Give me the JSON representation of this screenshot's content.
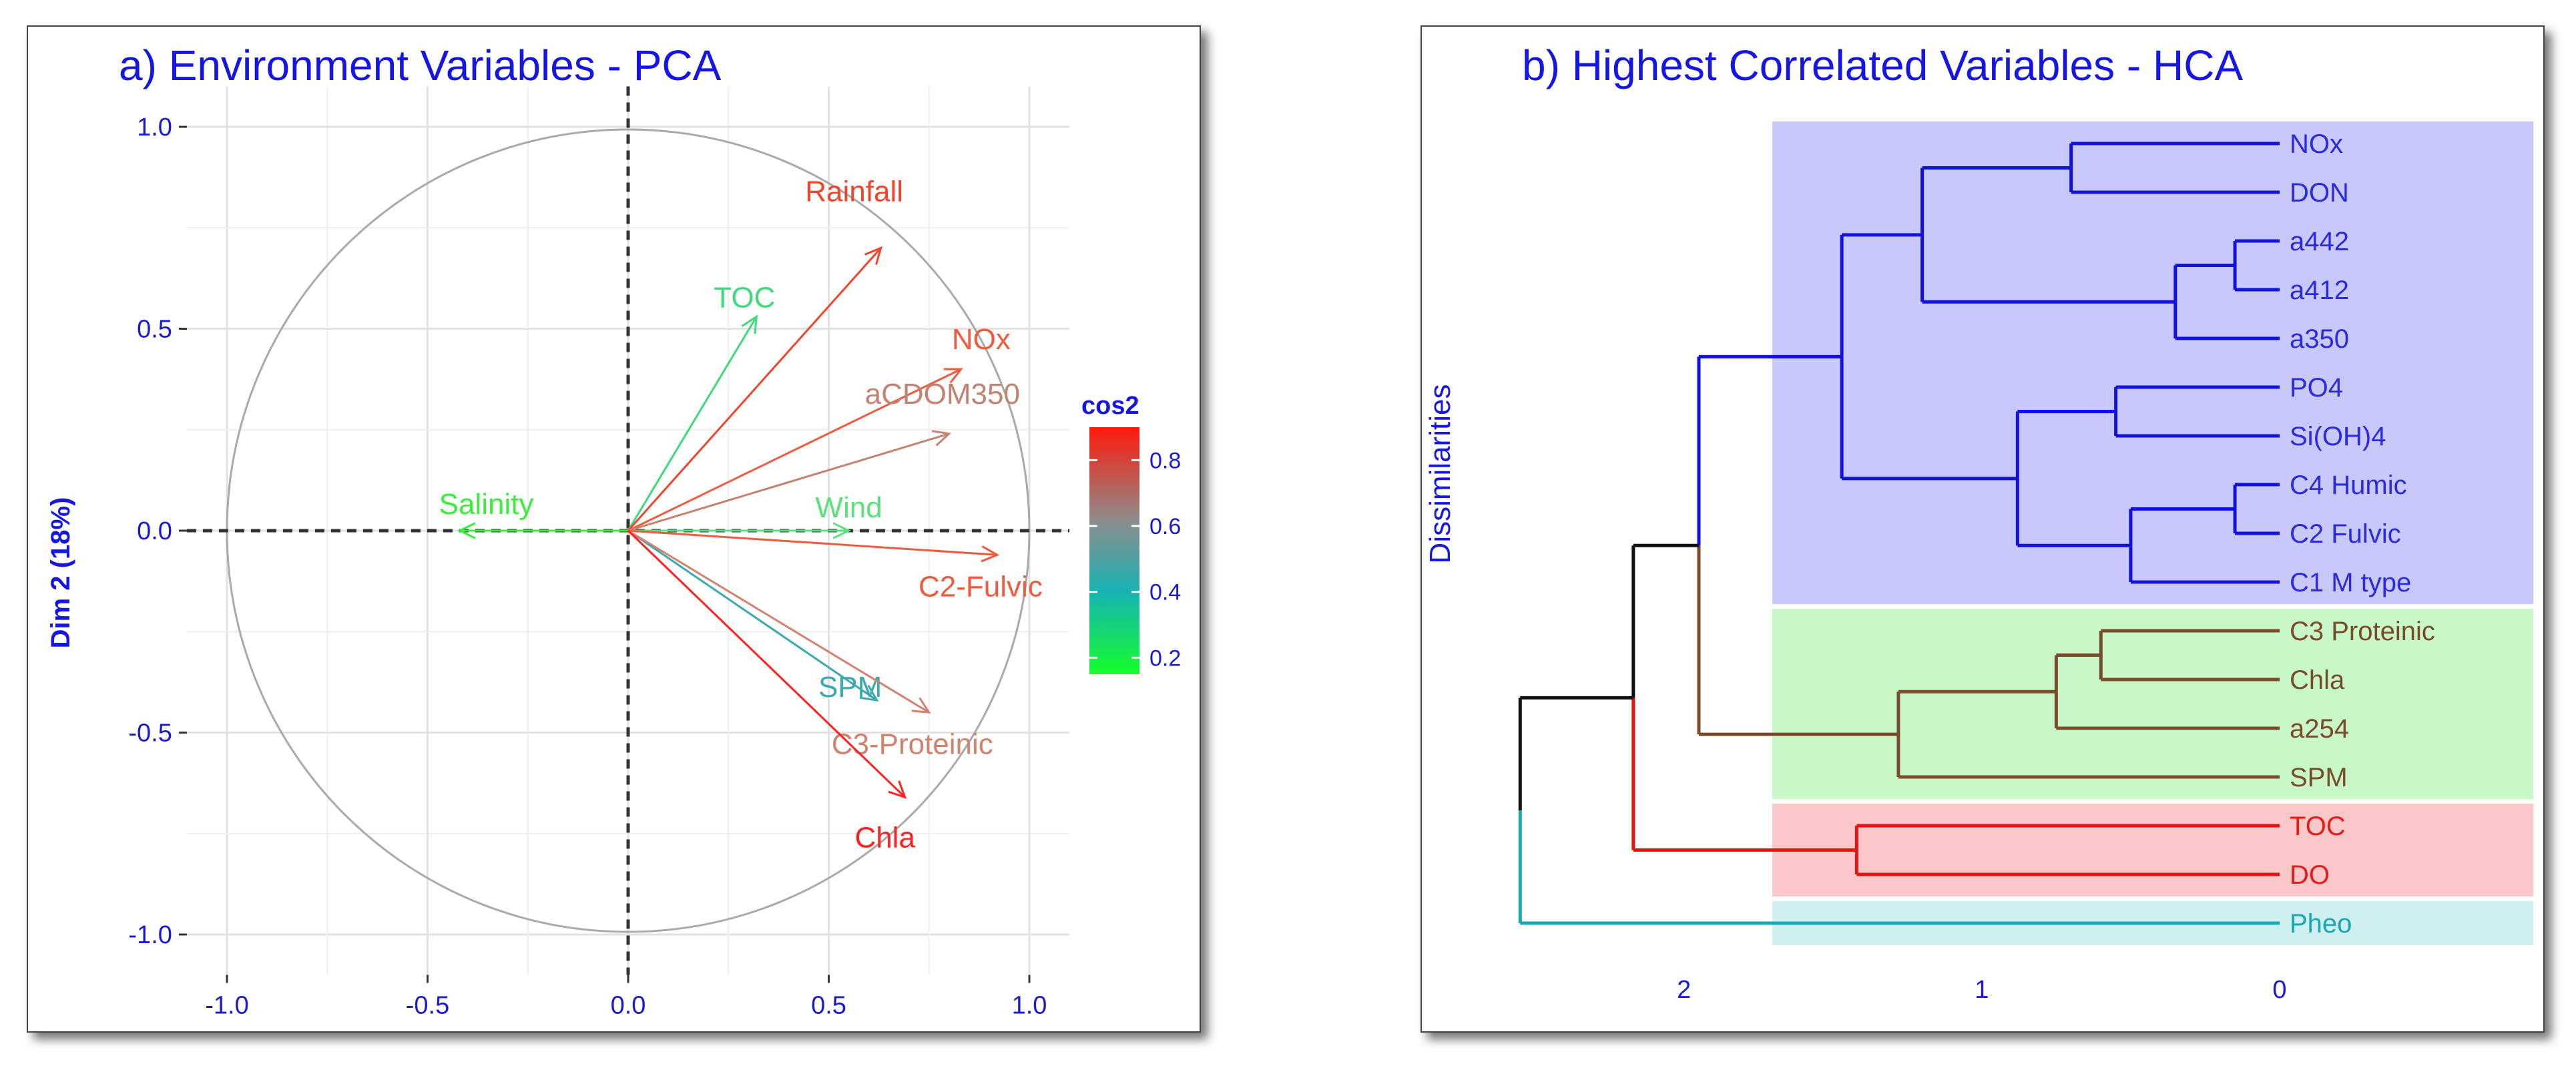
{
  "chart_data": [
    {
      "type": "scatter",
      "subtype": "pca-variable-correlation-circle",
      "title": "a) Environment Variables - PCA",
      "xlabel": "",
      "ylabel": "Dim 2 (18%)",
      "xlim": [
        -1.0,
        1.0
      ],
      "ylim": [
        -1.0,
        1.0
      ],
      "x_ticks": [
        "-1.0",
        "-0.5",
        "0.0",
        "0.5",
        "1.0"
      ],
      "y_ticks": [
        "1.0",
        "0.5",
        "0.0",
        "-0.5",
        "-1.0"
      ],
      "grid": true,
      "legend": {
        "title": "cos2",
        "values": [
          "0.8",
          "0.6",
          "0.4",
          "0.2"
        ],
        "placement": "right",
        "colors": [
          "#ff2a1a",
          "#8c8c8c",
          "#16b3b3",
          "#14ff2a"
        ]
      },
      "variables": [
        {
          "name": "TOC",
          "x": 0.32,
          "y": 0.53,
          "cos2": 0.38,
          "color": "#3ddb7a"
        },
        {
          "name": "Rainfall",
          "x": 0.63,
          "y": 0.7,
          "cos2": 0.89,
          "color": "#f0442c"
        },
        {
          "name": "NOx",
          "x": 0.83,
          "y": 0.4,
          "cos2": 0.85,
          "color": "#f05a3e"
        },
        {
          "name": "aCDOM350",
          "x": 0.8,
          "y": 0.24,
          "cos2": 0.7,
          "color": "#c48372"
        },
        {
          "name": "Salinity",
          "x": -0.42,
          "y": 0.0,
          "cos2": 0.2,
          "color": "#3cee3c"
        },
        {
          "name": "Wind",
          "x": 0.55,
          "y": 0.0,
          "cos2": 0.3,
          "color": "#5be07b"
        },
        {
          "name": "C2-Fulvic",
          "x": 0.92,
          "y": -0.06,
          "cos2": 0.87,
          "color": "#f05a3e"
        },
        {
          "name": "SPM",
          "x": 0.62,
          "y": -0.42,
          "cos2": 0.55,
          "color": "#3aaab0"
        },
        {
          "name": "C3-Proteinic",
          "x": 0.75,
          "y": -0.45,
          "cos2": 0.72,
          "color": "#d2826f"
        },
        {
          "name": "Chla",
          "x": 0.69,
          "y": -0.66,
          "cos2": 0.92,
          "color": "#ff2020"
        }
      ]
    },
    {
      "type": "dendrogram",
      "title": "b) Highest Correlated Variables - HCA",
      "ylabel": "Dissimilarities",
      "xlim": [
        2.6,
        0
      ],
      "x_ticks": [
        "2",
        "1",
        "0"
      ],
      "leaves": [
        {
          "name": "NOx",
          "cluster": 0
        },
        {
          "name": "DON",
          "cluster": 0
        },
        {
          "name": "a442",
          "cluster": 0
        },
        {
          "name": "a412",
          "cluster": 0
        },
        {
          "name": "a350",
          "cluster": 0
        },
        {
          "name": "PO4",
          "cluster": 0
        },
        {
          "name": "Si(OH)4",
          "cluster": 0
        },
        {
          "name": "C4 Humic",
          "cluster": 0
        },
        {
          "name": "C2 Fulvic",
          "cluster": 0
        },
        {
          "name": "C1 M type",
          "cluster": 0
        },
        {
          "name": "C3 Proteinic",
          "cluster": 1
        },
        {
          "name": "Chla",
          "cluster": 1
        },
        {
          "name": "a254",
          "cluster": 1
        },
        {
          "name": "SPM",
          "cluster": 1
        },
        {
          "name": "TOC",
          "cluster": 2
        },
        {
          "name": "DO",
          "cluster": 2
        },
        {
          "name": "Pheo",
          "cluster": 3
        }
      ],
      "clusters": [
        {
          "line_color": "#1010e0",
          "box_color": "#c8c8fa",
          "text_color": "#2a2ae6"
        },
        {
          "line_color": "#7a4a2a",
          "box_color": "#c8f8c8",
          "text_color": "#7a4a2a"
        },
        {
          "line_color": "#ee1010",
          "box_color": "#fac8c8",
          "text_color": "#e81a1a"
        },
        {
          "line_color": "#1aa8b0",
          "box_color": "#cfeff0",
          "text_color": "#1aa8b0"
        }
      ],
      "merges": [
        {
          "a": 0,
          "b": 1,
          "height": 0.7,
          "color": 0
        },
        {
          "a": 2,
          "b": 3,
          "height": 0.15,
          "color": 0
        },
        {
          "a": "n1",
          "b": 4,
          "height": 0.35,
          "color": 0
        },
        {
          "a": "n0",
          "b": "n2",
          "height": 1.2,
          "color": 0
        },
        {
          "a": 5,
          "b": 6,
          "height": 0.55,
          "color": 0
        },
        {
          "a": 7,
          "b": 8,
          "height": 0.15,
          "color": 0
        },
        {
          "a": "n5",
          "b": 9,
          "height": 0.5,
          "color": 0
        },
        {
          "a": "n4",
          "b": "n6",
          "height": 0.88,
          "color": 0
        },
        {
          "a": "n3",
          "b": "n7",
          "height": 1.47,
          "color": 0
        },
        {
          "a": 10,
          "b": 11,
          "height": 0.6,
          "color": 1
        },
        {
          "a": "n9",
          "b": 12,
          "height": 0.75,
          "color": 1
        },
        {
          "a": "n10",
          "b": 13,
          "height": 1.28,
          "color": 1
        },
        {
          "a": "n8",
          "b": "n11",
          "height": 1.95,
          "color": "mix"
        },
        {
          "a": 14,
          "b": 15,
          "height": 1.42,
          "color": 2
        },
        {
          "a": "n12",
          "b": "n13",
          "height": 2.17,
          "color": "mix2"
        },
        {
          "a": "n14",
          "b": 16,
          "height": 2.55,
          "color": "mix3"
        }
      ]
    }
  ]
}
